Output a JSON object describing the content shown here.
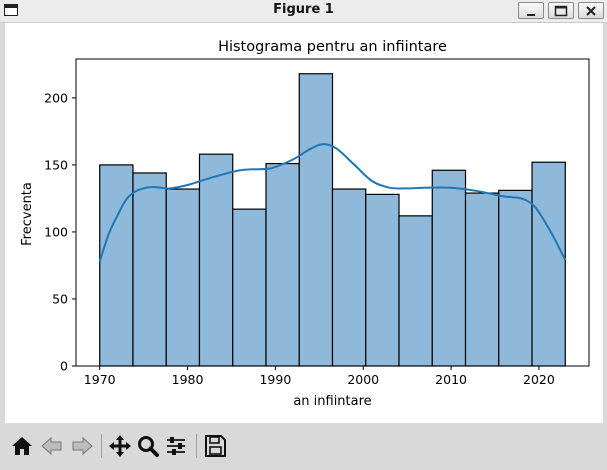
{
  "window": {
    "title": "Figure 1",
    "buttons": [
      "minimize",
      "maximize",
      "close"
    ]
  },
  "toolbar": {
    "tools": [
      "home-icon",
      "back-icon",
      "forward-icon",
      "pan-icon",
      "zoom-icon",
      "configure-subplots-icon",
      "save-icon"
    ]
  },
  "chart_data": {
    "type": "bar",
    "title": "Histograma pentru an infiintare",
    "xlabel": "an infiintare",
    "ylabel": "Frecventa",
    "bin_start": 1970,
    "bin_end": 2023,
    "values": [
      150,
      144,
      132,
      158,
      117,
      151,
      218,
      132,
      128,
      112,
      146,
      129,
      131,
      152
    ],
    "xlim": [
      1967.3,
      2025.7
    ],
    "ylim": [
      0,
      229
    ],
    "xticks": [
      1970,
      1980,
      1990,
      2000,
      2010,
      2020
    ],
    "yticks": [
      0,
      50,
      100,
      150,
      200
    ],
    "bar_color": "#8fb9da",
    "line_color": "#1f77b4",
    "kde": {
      "x": [
        1970,
        1971,
        1972,
        1973,
        1974,
        1975,
        1976,
        1977,
        1978,
        1980,
        1983,
        1986,
        1989,
        1990,
        1992,
        1994,
        1995.5,
        1997,
        1999,
        2001,
        2003,
        2005,
        2007,
        2010,
        2013,
        2016,
        2018,
        2019.5,
        2021,
        2022,
        2023
      ],
      "y": [
        78,
        98,
        112,
        124,
        130,
        132.5,
        133.5,
        133,
        132.5,
        135,
        141,
        146,
        147,
        148.5,
        154,
        162,
        165.5,
        162,
        150,
        138,
        133,
        132.5,
        133,
        133,
        130.5,
        126.5,
        125,
        119,
        104,
        92,
        79
      ]
    },
    "grid": false,
    "legend": "none"
  }
}
